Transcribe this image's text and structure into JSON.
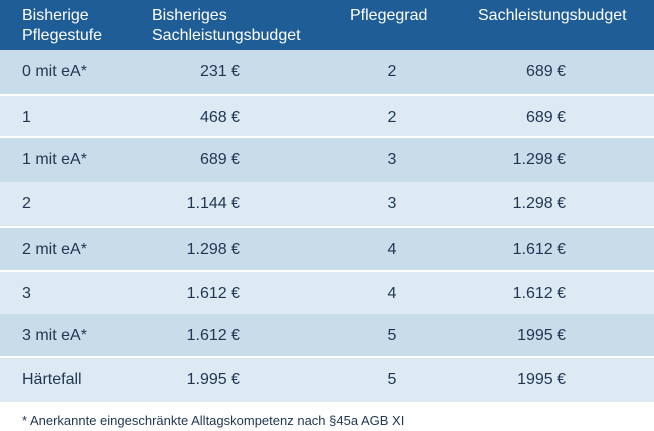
{
  "table": {
    "headers": {
      "col1": "Bisherige Pflegestufe",
      "col2": "Bisheriges Sachleistungsbudget",
      "col3": "Pflegegrad",
      "col4": "Sachleistungsbudget"
    },
    "rows": [
      {
        "stufe": "0 mit eA*",
        "budget_alt": "231 €",
        "grad": "2",
        "budget_neu": "689 €"
      },
      {
        "stufe": "1",
        "budget_alt": "468 €",
        "grad": "2",
        "budget_neu": "689 €"
      },
      {
        "stufe": "1 mit eA*",
        "budget_alt": "689 €",
        "grad": "3",
        "budget_neu": "1.298 €"
      },
      {
        "stufe": "2",
        "budget_alt": "1.144 €",
        "grad": "3",
        "budget_neu": "1.298 €"
      },
      {
        "stufe": "2 mit eA*",
        "budget_alt": "1.298 €",
        "grad": "4",
        "budget_neu": "1.612 €"
      },
      {
        "stufe": "3",
        "budget_alt": "1.612 €",
        "grad": "4",
        "budget_neu": "1.612 €"
      },
      {
        "stufe": "3 mit eA*",
        "budget_alt": "1.612 €",
        "grad": "5",
        "budget_neu": "1995 €"
      },
      {
        "stufe": "Härtefall",
        "budget_alt": "1.995 €",
        "grad": "5",
        "budget_neu": "1995 €"
      }
    ]
  },
  "footnote": "* Anerkannte eingeschränkte Alltagskompetenz nach §45a AGB XI",
  "colors": {
    "header_bg": "#1f5d97",
    "row_dark": "#c8dcea",
    "row_light": "#ddeaf3",
    "text": "#1f3552"
  }
}
